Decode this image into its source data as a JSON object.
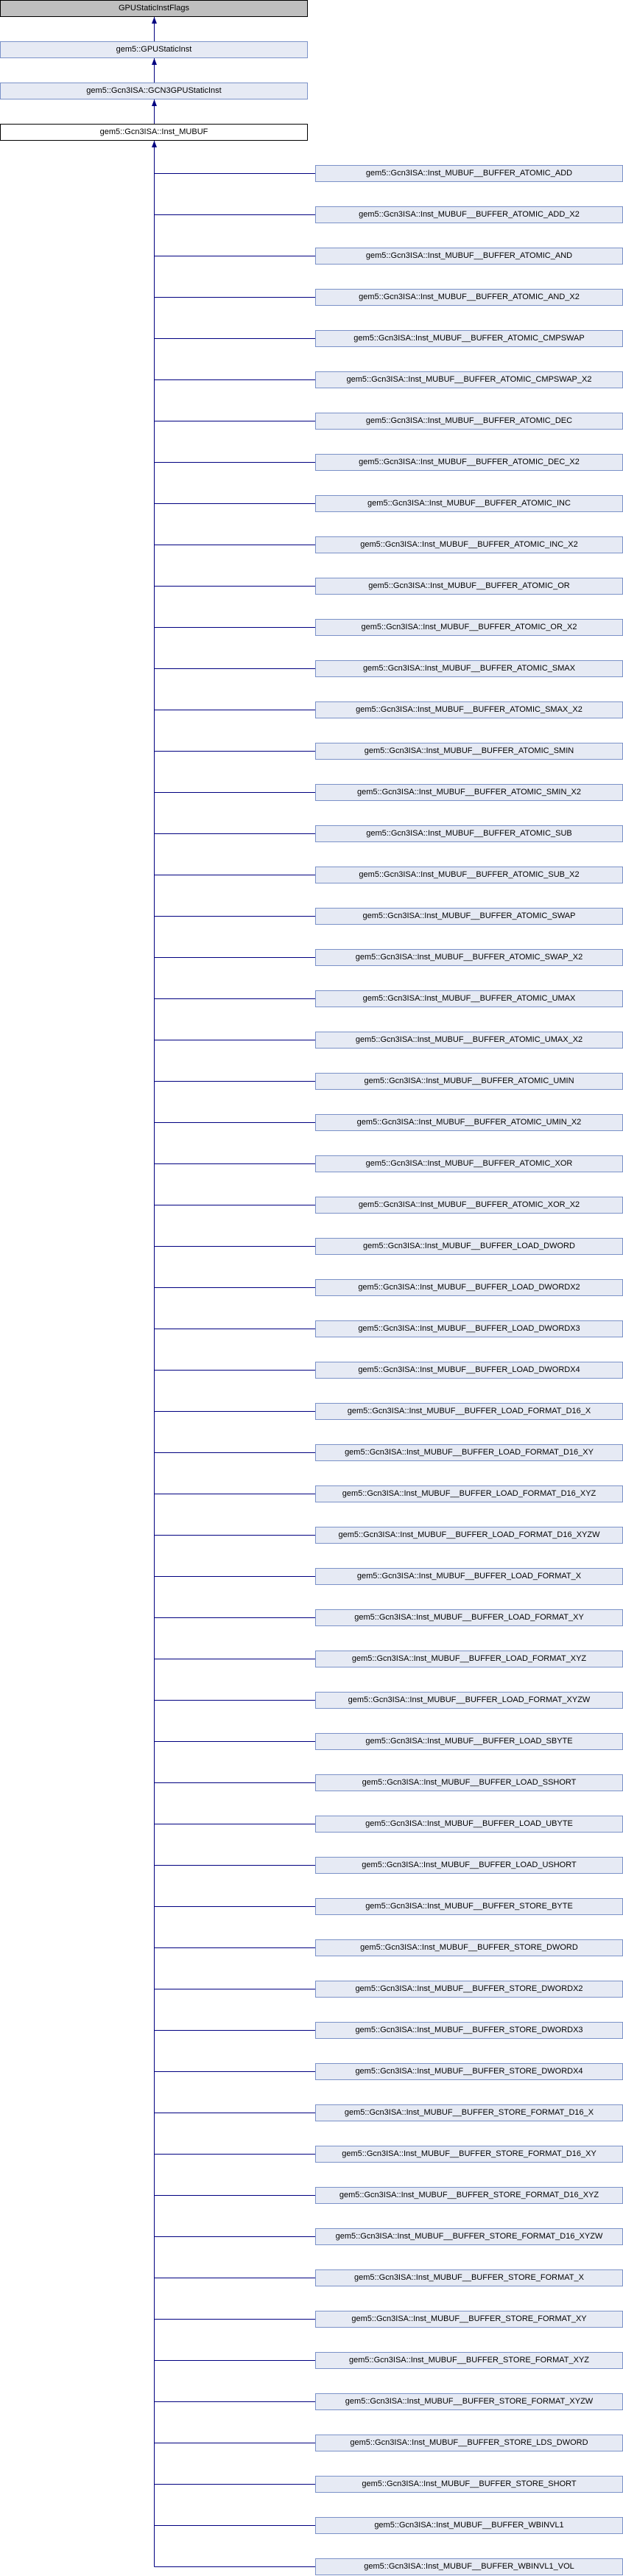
{
  "colors": {
    "edge": "#000080",
    "node_fill": "#e6eaf4",
    "node_border": "#7b92c8",
    "root_fill": "#bfbfbf",
    "current_fill": "#ffffff"
  },
  "ancestors": [
    "GPUStaticInstFlags",
    "gem5::GPUStaticInst",
    "gem5::Gcn3ISA::GCN3GPUStaticInst",
    "gem5::Gcn3ISA::Inst_MUBUF"
  ],
  "children": [
    "gem5::Gcn3ISA::Inst_MUBUF__BUFFER_ATOMIC_ADD",
    "gem5::Gcn3ISA::Inst_MUBUF__BUFFER_ATOMIC_ADD_X2",
    "gem5::Gcn3ISA::Inst_MUBUF__BUFFER_ATOMIC_AND",
    "gem5::Gcn3ISA::Inst_MUBUF__BUFFER_ATOMIC_AND_X2",
    "gem5::Gcn3ISA::Inst_MUBUF__BUFFER_ATOMIC_CMPSWAP",
    "gem5::Gcn3ISA::Inst_MUBUF__BUFFER_ATOMIC_CMPSWAP_X2",
    "gem5::Gcn3ISA::Inst_MUBUF__BUFFER_ATOMIC_DEC",
    "gem5::Gcn3ISA::Inst_MUBUF__BUFFER_ATOMIC_DEC_X2",
    "gem5::Gcn3ISA::Inst_MUBUF__BUFFER_ATOMIC_INC",
    "gem5::Gcn3ISA::Inst_MUBUF__BUFFER_ATOMIC_INC_X2",
    "gem5::Gcn3ISA::Inst_MUBUF__BUFFER_ATOMIC_OR",
    "gem5::Gcn3ISA::Inst_MUBUF__BUFFER_ATOMIC_OR_X2",
    "gem5::Gcn3ISA::Inst_MUBUF__BUFFER_ATOMIC_SMAX",
    "gem5::Gcn3ISA::Inst_MUBUF__BUFFER_ATOMIC_SMAX_X2",
    "gem5::Gcn3ISA::Inst_MUBUF__BUFFER_ATOMIC_SMIN",
    "gem5::Gcn3ISA::Inst_MUBUF__BUFFER_ATOMIC_SMIN_X2",
    "gem5::Gcn3ISA::Inst_MUBUF__BUFFER_ATOMIC_SUB",
    "gem5::Gcn3ISA::Inst_MUBUF__BUFFER_ATOMIC_SUB_X2",
    "gem5::Gcn3ISA::Inst_MUBUF__BUFFER_ATOMIC_SWAP",
    "gem5::Gcn3ISA::Inst_MUBUF__BUFFER_ATOMIC_SWAP_X2",
    "gem5::Gcn3ISA::Inst_MUBUF__BUFFER_ATOMIC_UMAX",
    "gem5::Gcn3ISA::Inst_MUBUF__BUFFER_ATOMIC_UMAX_X2",
    "gem5::Gcn3ISA::Inst_MUBUF__BUFFER_ATOMIC_UMIN",
    "gem5::Gcn3ISA::Inst_MUBUF__BUFFER_ATOMIC_UMIN_X2",
    "gem5::Gcn3ISA::Inst_MUBUF__BUFFER_ATOMIC_XOR",
    "gem5::Gcn3ISA::Inst_MUBUF__BUFFER_ATOMIC_XOR_X2",
    "gem5::Gcn3ISA::Inst_MUBUF__BUFFER_LOAD_DWORD",
    "gem5::Gcn3ISA::Inst_MUBUF__BUFFER_LOAD_DWORDX2",
    "gem5::Gcn3ISA::Inst_MUBUF__BUFFER_LOAD_DWORDX3",
    "gem5::Gcn3ISA::Inst_MUBUF__BUFFER_LOAD_DWORDX4",
    "gem5::Gcn3ISA::Inst_MUBUF__BUFFER_LOAD_FORMAT_D16_X",
    "gem5::Gcn3ISA::Inst_MUBUF__BUFFER_LOAD_FORMAT_D16_XY",
    "gem5::Gcn3ISA::Inst_MUBUF__BUFFER_LOAD_FORMAT_D16_XYZ",
    "gem5::Gcn3ISA::Inst_MUBUF__BUFFER_LOAD_FORMAT_D16_XYZW",
    "gem5::Gcn3ISA::Inst_MUBUF__BUFFER_LOAD_FORMAT_X",
    "gem5::Gcn3ISA::Inst_MUBUF__BUFFER_LOAD_FORMAT_XY",
    "gem5::Gcn3ISA::Inst_MUBUF__BUFFER_LOAD_FORMAT_XYZ",
    "gem5::Gcn3ISA::Inst_MUBUF__BUFFER_LOAD_FORMAT_XYZW",
    "gem5::Gcn3ISA::Inst_MUBUF__BUFFER_LOAD_SBYTE",
    "gem5::Gcn3ISA::Inst_MUBUF__BUFFER_LOAD_SSHORT",
    "gem5::Gcn3ISA::Inst_MUBUF__BUFFER_LOAD_UBYTE",
    "gem5::Gcn3ISA::Inst_MUBUF__BUFFER_LOAD_USHORT",
    "gem5::Gcn3ISA::Inst_MUBUF__BUFFER_STORE_BYTE",
    "gem5::Gcn3ISA::Inst_MUBUF__BUFFER_STORE_DWORD",
    "gem5::Gcn3ISA::Inst_MUBUF__BUFFER_STORE_DWORDX2",
    "gem5::Gcn3ISA::Inst_MUBUF__BUFFER_STORE_DWORDX3",
    "gem5::Gcn3ISA::Inst_MUBUF__BUFFER_STORE_DWORDX4",
    "gem5::Gcn3ISA::Inst_MUBUF__BUFFER_STORE_FORMAT_D16_X",
    "gem5::Gcn3ISA::Inst_MUBUF__BUFFER_STORE_FORMAT_D16_XY",
    "gem5::Gcn3ISA::Inst_MUBUF__BUFFER_STORE_FORMAT_D16_XYZ",
    "gem5::Gcn3ISA::Inst_MUBUF__BUFFER_STORE_FORMAT_D16_XYZW",
    "gem5::Gcn3ISA::Inst_MUBUF__BUFFER_STORE_FORMAT_X",
    "gem5::Gcn3ISA::Inst_MUBUF__BUFFER_STORE_FORMAT_XY",
    "gem5::Gcn3ISA::Inst_MUBUF__BUFFER_STORE_FORMAT_XYZ",
    "gem5::Gcn3ISA::Inst_MUBUF__BUFFER_STORE_FORMAT_XYZW",
    "gem5::Gcn3ISA::Inst_MUBUF__BUFFER_STORE_LDS_DWORD",
    "gem5::Gcn3ISA::Inst_MUBUF__BUFFER_STORE_SHORT",
    "gem5::Gcn3ISA::Inst_MUBUF__BUFFER_WBINVL1",
    "gem5::Gcn3ISA::Inst_MUBUF__BUFFER_WBINVL1_VOL"
  ]
}
